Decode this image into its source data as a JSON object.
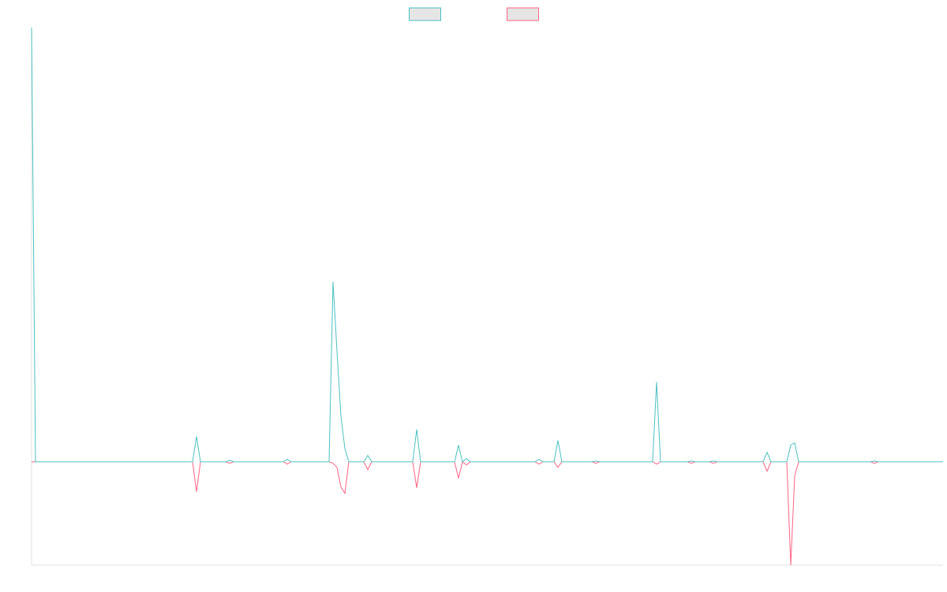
{
  "chart_data": {
    "type": "line",
    "legend": "top",
    "grid": false,
    "x": [
      0,
      5,
      204,
      209,
      214,
      246,
      251,
      256,
      319,
      324,
      329,
      377,
      382,
      387,
      392,
      397,
      402,
      421,
      426,
      431,
      483,
      488,
      493,
      536,
      541,
      546,
      551,
      556,
      638,
      643,
      648,
      662,
      667,
      672,
      710,
      715,
      720,
      787,
      792,
      797,
      831,
      836,
      841,
      859,
      864,
      869,
      927,
      932,
      937,
      957,
      962,
      967,
      972,
      1063,
      1068,
      1073,
      1155
    ],
    "xlim": [
      0,
      1155
    ],
    "ylim": [
      -131,
      550
    ],
    "series": [
      {
        "color": "#4bc0c0",
        "values": [
          550,
          0,
          0,
          32,
          0,
          0,
          2,
          0,
          0,
          3,
          0,
          0,
          228,
          140,
          58,
          17,
          0,
          0,
          8,
          0,
          0,
          41,
          0,
          0,
          21,
          0,
          4,
          0,
          0,
          3,
          0,
          0,
          27,
          0,
          0,
          1,
          0,
          0,
          101,
          0,
          0,
          1,
          0,
          0,
          1,
          0,
          0,
          12,
          0,
          0,
          21,
          24,
          0,
          0,
          1,
          0,
          0
        ]
      },
      {
        "color": "#ff6384",
        "values": [
          0,
          0,
          0,
          -38,
          0,
          0,
          -2,
          0,
          0,
          -3,
          0,
          0,
          -2,
          -7,
          -32,
          -40,
          0,
          0,
          -10,
          0,
          0,
          -33,
          0,
          0,
          -21,
          0,
          -4,
          0,
          0,
          -3,
          0,
          0,
          -7,
          0,
          0,
          -2,
          0,
          0,
          -3,
          0,
          0,
          -2,
          0,
          0,
          -2,
          0,
          0,
          -12,
          0,
          0,
          -131,
          -18,
          0,
          0,
          -2,
          0,
          0
        ]
      }
    ]
  }
}
